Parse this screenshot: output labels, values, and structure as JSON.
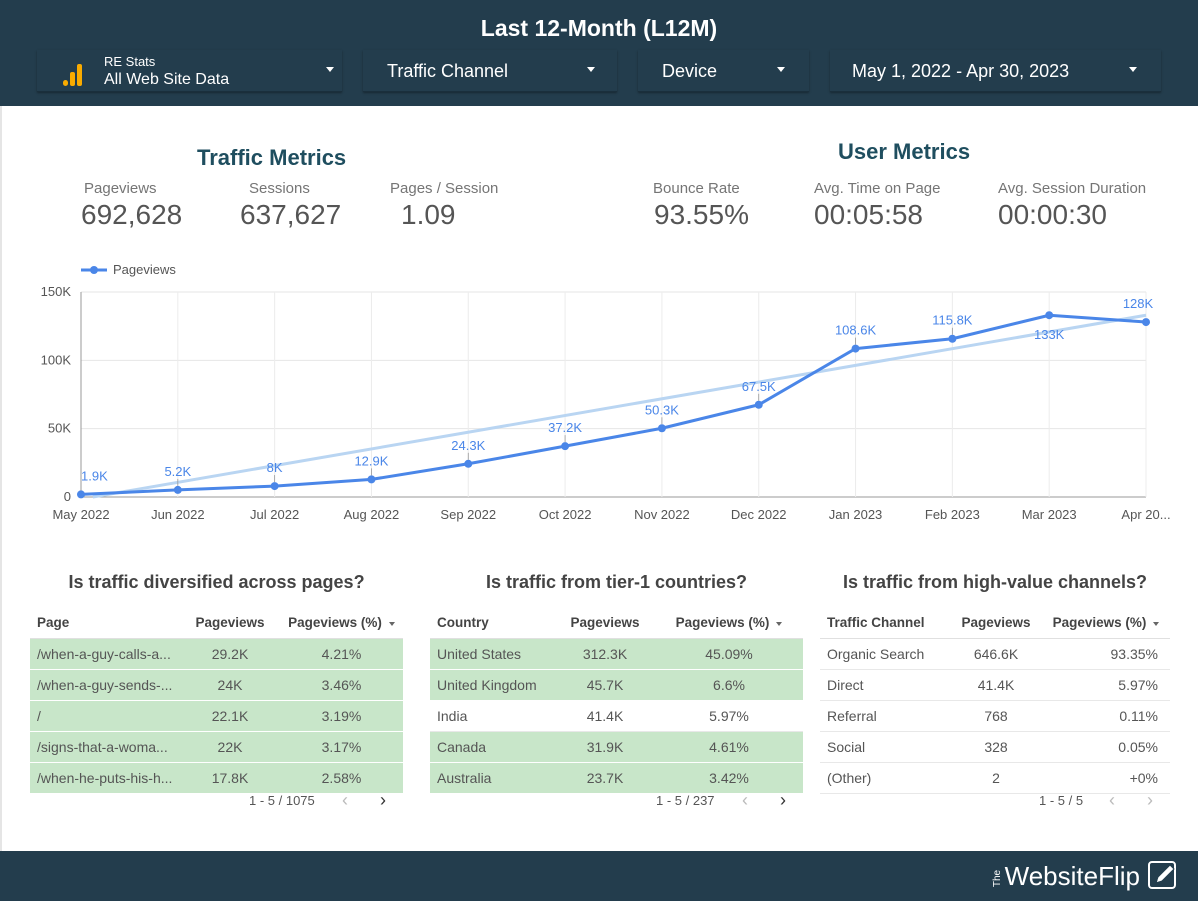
{
  "header": {
    "title": "Last 12-Month (L12M)",
    "data_source": {
      "name": "RE Stats",
      "view": "All Web Site Data",
      "icon": "analytics-icon"
    },
    "filters": [
      {
        "label": "Traffic Channel"
      },
      {
        "label": "Device"
      },
      {
        "label": "May 1, 2022 - Apr 30, 2023"
      }
    ]
  },
  "traffic_metrics": {
    "title": "Traffic Metrics",
    "items": [
      {
        "label": "Pageviews",
        "value": "692,628"
      },
      {
        "label": "Sessions",
        "value": "637,627"
      },
      {
        "label": "Pages / Session",
        "value": "1.09"
      }
    ]
  },
  "user_metrics": {
    "title": "User Metrics",
    "items": [
      {
        "label": "Bounce Rate",
        "value": "93.55%"
      },
      {
        "label": "Avg. Time on Page",
        "value": "00:05:58"
      },
      {
        "label": "Avg. Session Duration",
        "value": "00:00:30"
      }
    ]
  },
  "chart_data": {
    "type": "line",
    "categories": [
      "May 2022",
      "Jun 2022",
      "Jul 2022",
      "Aug 2022",
      "Sep 2022",
      "Oct 2022",
      "Nov 2022",
      "Dec 2022",
      "Jan 2023",
      "Feb 2023",
      "Mar 2023",
      "Apr 20..."
    ],
    "series": [
      {
        "name": "Pageviews",
        "values": [
          1900,
          5200,
          8000,
          12900,
          24300,
          37200,
          50300,
          67500,
          108600,
          115800,
          133000,
          128000
        ],
        "labels": [
          "1.9K",
          "5.2K",
          "8K",
          "12.9K",
          "24.3K",
          "37.2K",
          "50.3K",
          "67.5K",
          "108.6K",
          "115.8K",
          "133K",
          "128K"
        ]
      }
    ],
    "trendline": {
      "start": -1500,
      "end": 133000
    },
    "yticks": [
      0,
      50000,
      100000,
      150000
    ],
    "ytick_labels": [
      "0",
      "50K",
      "100K",
      "150K"
    ],
    "ylim": [
      0,
      150000
    ],
    "legend": "top-left",
    "grid": true,
    "colors": {
      "line": "#4a86e8",
      "trend": "#b9d5f2"
    }
  },
  "tables": [
    {
      "title": "Is traffic diversified across pages?",
      "columns": [
        "Page",
        "Pageviews",
        "Pageviews (%)"
      ],
      "rows": [
        [
          "/when-a-guy-calls-a...",
          "29.2K",
          "4.21%"
        ],
        [
          "/when-a-guy-sends-...",
          "24K",
          "3.46%"
        ],
        [
          "/",
          "22.1K",
          "3.19%"
        ],
        [
          "/signs-that-a-woma...",
          "22K",
          "3.17%"
        ],
        [
          "/when-he-puts-his-h...",
          "17.8K",
          "2.58%"
        ]
      ],
      "highlighted": [
        0,
        1,
        2,
        3,
        4
      ],
      "pager": "1 - 5 / 1075"
    },
    {
      "title": "Is traffic from tier-1 countries?",
      "columns": [
        "Country",
        "Pageviews",
        "Pageviews (%)"
      ],
      "rows": [
        [
          "United States",
          "312.3K",
          "45.09%"
        ],
        [
          "United Kingdom",
          "45.7K",
          "6.6%"
        ],
        [
          "India",
          "41.4K",
          "5.97%"
        ],
        [
          "Canada",
          "31.9K",
          "4.61%"
        ],
        [
          "Australia",
          "23.7K",
          "3.42%"
        ]
      ],
      "highlighted": [
        0,
        1,
        3,
        4
      ],
      "pager": "1 - 5 / 237"
    },
    {
      "title": "Is traffic from high-value channels?",
      "columns": [
        "Traffic Channel",
        "Pageviews",
        "Pageviews (%)"
      ],
      "rows": [
        [
          "Organic Search",
          "646.6K",
          "93.35%"
        ],
        [
          "Direct",
          "41.4K",
          "5.97%"
        ],
        [
          "Referral",
          "768",
          "0.11%"
        ],
        [
          "Social",
          "328",
          "0.05%"
        ],
        [
          "(Other)",
          "2",
          "+0%"
        ]
      ],
      "highlighted": [],
      "pager": "1 - 5 / 5"
    }
  ],
  "footer": {
    "brand_the": "The",
    "brand": "WebsiteFlip",
    "icon": "pen-edit-icon"
  }
}
